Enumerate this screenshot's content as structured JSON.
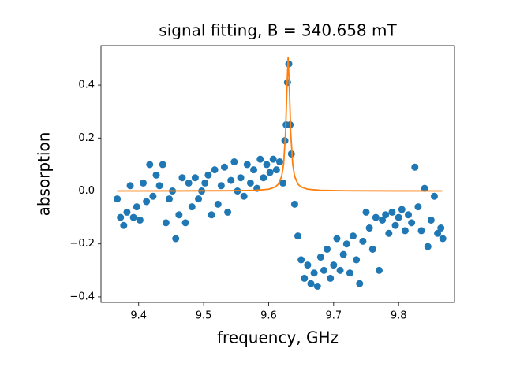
{
  "chart_data": {
    "type": "scatter",
    "title": "signal fitting, B = 340.658 mT",
    "xlabel": "frequency, GHz",
    "ylabel": "absorption",
    "xlim": [
      9.342,
      9.886
    ],
    "ylim": [
      -0.421,
      0.549
    ],
    "xticks": [
      9.4,
      9.5,
      9.6,
      9.7,
      9.8
    ],
    "yticks": [
      {
        "value": -0.4,
        "label": "−0.4"
      },
      {
        "value": -0.2,
        "label": "−0.2"
      },
      {
        "value": 0,
        "label": "0.0"
      },
      0.2,
      0.4
    ],
    "grid": false,
    "series": [
      {
        "type": "scatter",
        "color": "#1f77b4",
        "x": [
          9.367,
          9.372,
          9.377,
          9.382,
          9.387,
          9.392,
          9.397,
          9.402,
          9.407,
          9.412,
          9.417,
          9.422,
          9.427,
          9.432,
          9.437,
          9.442,
          9.447,
          9.452,
          9.457,
          9.462,
          9.467,
          9.472,
          9.477,
          9.482,
          9.487,
          9.492,
          9.497,
          9.502,
          9.507,
          9.512,
          9.517,
          9.522,
          9.527,
          9.532,
          9.537,
          9.542,
          9.547,
          9.552,
          9.557,
          9.562,
          9.567,
          9.572,
          9.577,
          9.582,
          9.587,
          9.592,
          9.597,
          9.602,
          9.607,
          9.612,
          9.617,
          9.622,
          9.625,
          9.627,
          9.629,
          9.631,
          9.633,
          9.635,
          9.64,
          9.645,
          9.65,
          9.655,
          9.66,
          9.665,
          9.67,
          9.675,
          9.68,
          9.685,
          9.69,
          9.695,
          9.7,
          9.705,
          9.71,
          9.715,
          9.72,
          9.725,
          9.73,
          9.735,
          9.74,
          9.745,
          9.75,
          9.755,
          9.76,
          9.765,
          9.77,
          9.775,
          9.78,
          9.785,
          9.79,
          9.795,
          9.8,
          9.805,
          9.81,
          9.815,
          9.82,
          9.825,
          9.83,
          9.835,
          9.84,
          9.845,
          9.85,
          9.855,
          9.86,
          9.865,
          9.868
        ],
        "values": [
          -0.03,
          -0.1,
          -0.13,
          -0.08,
          0.02,
          -0.1,
          -0.06,
          -0.11,
          0.03,
          -0.04,
          0.1,
          -0.02,
          0.06,
          0.02,
          0.1,
          -0.12,
          -0.03,
          0,
          -0.18,
          -0.09,
          0.05,
          -0.12,
          0.03,
          -0.06,
          0.05,
          -0.03,
          0,
          0.03,
          0.06,
          -0.09,
          0.08,
          -0.05,
          0.02,
          0.09,
          -0.08,
          0.04,
          0.11,
          0,
          0.05,
          -0.02,
          0.1,
          0.03,
          0.08,
          0.01,
          0.12,
          0.05,
          0.1,
          0.07,
          0.12,
          0.08,
          0.11,
          0.03,
          0.19,
          0.25,
          0.41,
          0.48,
          0.25,
          0.14,
          -0.05,
          -0.17,
          -0.26,
          -0.33,
          -0.28,
          -0.35,
          -0.31,
          -0.36,
          -0.25,
          -0.3,
          -0.22,
          -0.33,
          -0.28,
          -0.18,
          -0.3,
          -0.24,
          -0.2,
          -0.31,
          -0.17,
          -0.26,
          -0.35,
          -0.19,
          -0.08,
          -0.14,
          -0.22,
          -0.1,
          -0.3,
          -0.11,
          -0.09,
          -0.16,
          -0.08,
          -0.13,
          -0.1,
          -0.07,
          -0.15,
          -0.09,
          -0.12,
          0.09,
          -0.06,
          -0.15,
          0.01,
          -0.21,
          -0.11,
          -0.02,
          -0.16,
          -0.14,
          -0.18
        ]
      },
      {
        "type": "line",
        "color": "#ff7f0e",
        "x": [
          9.367,
          9.45,
          9.55,
          9.58,
          9.6,
          9.61,
          9.615,
          9.62,
          9.623,
          9.626,
          9.628,
          9.63,
          9.632,
          9.634,
          9.637,
          9.64,
          9.645,
          9.65,
          9.66,
          9.68,
          9.72,
          9.8,
          9.867
        ],
        "values": [
          0.0001,
          0.0002,
          0.001,
          0.0025,
          0.0068,
          0.015,
          0.026,
          0.055,
          0.101,
          0.219,
          0.38,
          0.505,
          0.38,
          0.219,
          0.101,
          0.055,
          0.026,
          0.015,
          0.0068,
          0.0025,
          0.0008,
          0.0002,
          0.0001
        ]
      }
    ]
  }
}
